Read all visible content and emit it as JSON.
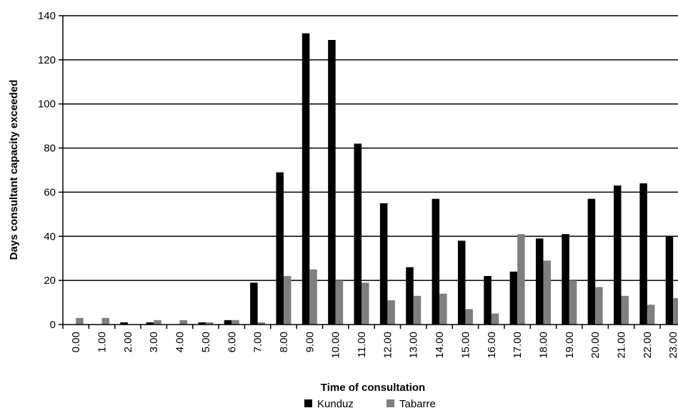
{
  "chart_data": {
    "type": "bar",
    "title": "",
    "xlabel": "Time of consultation",
    "ylabel": "Days consultant capacity exceeded",
    "ylim": [
      0,
      140
    ],
    "yticks": [
      0,
      20,
      40,
      60,
      80,
      100,
      120,
      140
    ],
    "grid": "horizontal",
    "legend_position": "bottom",
    "categories": [
      "0.00",
      "1.00",
      "2.00",
      "3.00",
      "4.00",
      "5.00",
      "6.00",
      "7.00",
      "8.00",
      "9.00",
      "10.00",
      "11.00",
      "12.00",
      "13.00",
      "14.00",
      "15.00",
      "16.00",
      "17.00",
      "18.00",
      "19.00",
      "20.00",
      "21.00",
      "22.00",
      "23.00"
    ],
    "series": [
      {
        "name": "Kunduz",
        "color": "#000000",
        "values": [
          0,
          0,
          1,
          1,
          0,
          1,
          2,
          19,
          69,
          132,
          129,
          82,
          55,
          26,
          57,
          38,
          22,
          24,
          39,
          41,
          57,
          63,
          64,
          40
        ]
      },
      {
        "name": "Tabarre",
        "color": "#7f7f7f",
        "values": [
          3,
          3,
          0,
          2,
          2,
          1,
          2,
          1,
          22,
          25,
          20,
          19,
          11,
          13,
          14,
          7,
          5,
          41,
          29,
          20,
          17,
          13,
          9,
          12
        ]
      }
    ]
  }
}
